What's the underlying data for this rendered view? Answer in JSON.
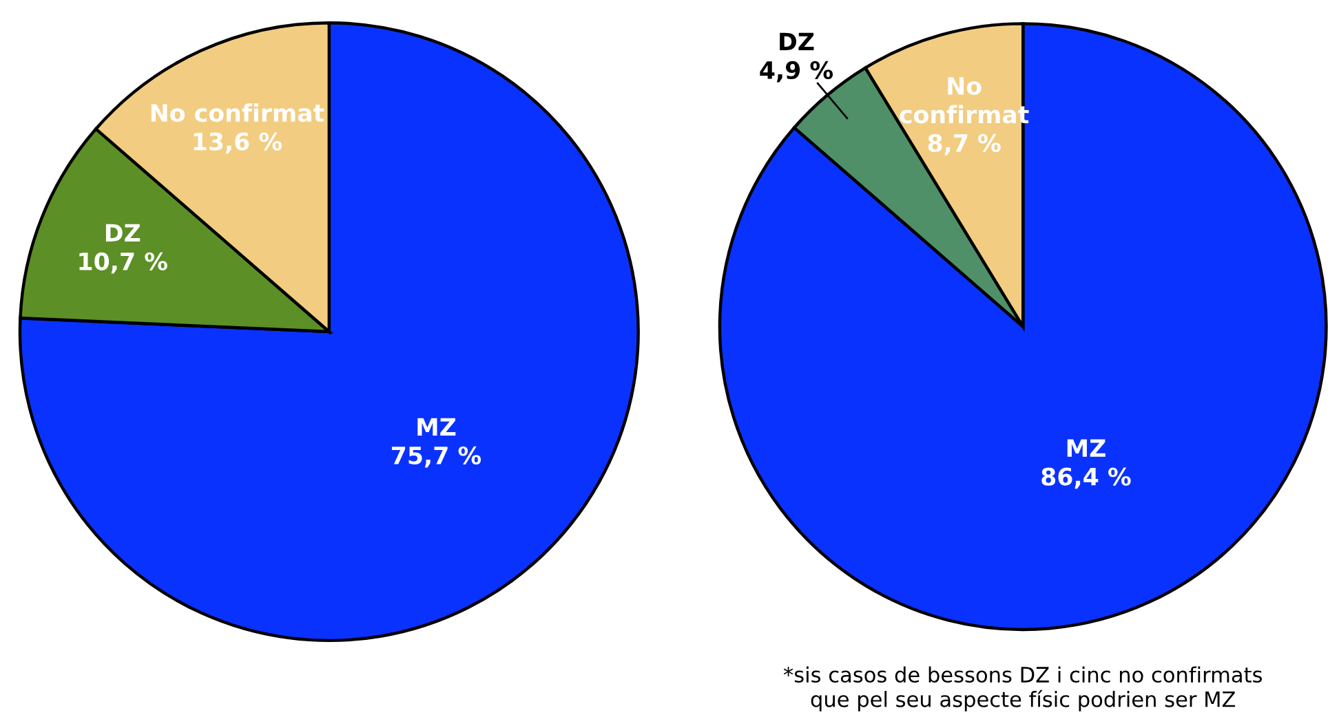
{
  "chart_data": [
    {
      "type": "pie",
      "categories": [
        "MZ",
        "DZ",
        "No confirmat"
      ],
      "values": [
        75.7,
        10.7,
        13.6
      ],
      "colors": [
        "#0a32ff",
        "#5c8f25",
        "#f2cc80"
      ],
      "value_labels": [
        "75,7 %",
        "10,7 %",
        "13,6 %"
      ]
    },
    {
      "type": "pie",
      "categories": [
        "MZ",
        "DZ",
        "No\nconfirmat"
      ],
      "values": [
        86.4,
        4.9,
        8.7
      ],
      "colors": [
        "#0a32ff",
        "#4f9068",
        "#f2cc80"
      ],
      "value_labels": [
        "86,4 %",
        "4,9 %",
        "8,7 %"
      ],
      "annotations": [
        "*sis casos de bessons DZ i cinc no confirmats\nque pel seu aspecte físic podrien ser MZ"
      ]
    }
  ]
}
